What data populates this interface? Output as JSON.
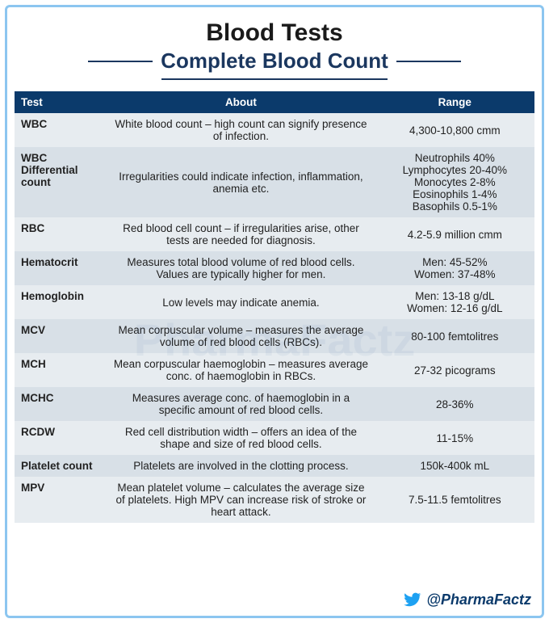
{
  "header": {
    "title": "Blood Tests",
    "subtitle": "Complete Blood Count",
    "subtitle_color": "#1b375f",
    "title_fontsize": 30,
    "subtitle_fontsize": 26
  },
  "border_color": "#8cc6f0",
  "watermark_text": "PharmaFactz",
  "table": {
    "header_bg": "#0b3a6b",
    "header_fg": "#ffffff",
    "row_odd_bg": "#e7ecf0",
    "row_even_bg": "#d8e0e7",
    "columns": [
      "Test",
      "About",
      "Range"
    ],
    "rows": [
      {
        "test": "WBC",
        "about": "White blood count – high count can signify presence of infection.",
        "range": "4,300-10,800 cmm"
      },
      {
        "test": "WBC Differential count",
        "about": "Irregularities could indicate infection, inflammation, anemia etc.",
        "range": "Neutrophils 40%\nLymphocytes 20-40%\nMonocytes 2-8%\nEosinophils 1-4%\nBasophils 0.5-1%"
      },
      {
        "test": "RBC",
        "about": "Red blood cell count – if irregularities arise, other tests are needed for diagnosis.",
        "range": "4.2-5.9 million cmm"
      },
      {
        "test": "Hematocrit",
        "about": "Measures total blood volume of red blood cells. Values are typically higher for men.",
        "range": "Men: 45-52%\nWomen: 37-48%"
      },
      {
        "test": "Hemoglobin",
        "about": "Low levels may indicate anemia.",
        "range": "Men: 13-18 g/dL\nWomen: 12-16 g/dL"
      },
      {
        "test": "MCV",
        "about": "Mean corpuscular volume – measures the average volume of red blood cells (RBCs).",
        "range": "80-100 femtolitres"
      },
      {
        "test": "MCH",
        "about": "Mean corpuscular haemoglobin – measures average conc. of haemoglobin in RBCs.",
        "range": "27-32 picograms"
      },
      {
        "test": "MCHC",
        "about": "Measures average conc. of haemoglobin in a specific amount of red blood cells.",
        "range": "28-36%"
      },
      {
        "test": "RCDW",
        "about": "Red cell distribution width – offers an idea of the shape and size of red blood cells.",
        "range": "11-15%"
      },
      {
        "test": "Platelet count",
        "about": "Platelets are involved in the clotting process.",
        "range": "150k-400k mL"
      },
      {
        "test": "MPV",
        "about": "Mean platelet volume – calculates the average size of platelets. High MPV can increase risk of stroke or heart attack.",
        "range": "7.5-11.5 femtolitres"
      }
    ]
  },
  "footer": {
    "handle": "@PharmaFactz",
    "twitter_color": "#1da1f2",
    "handle_color": "#0b3a6b"
  }
}
